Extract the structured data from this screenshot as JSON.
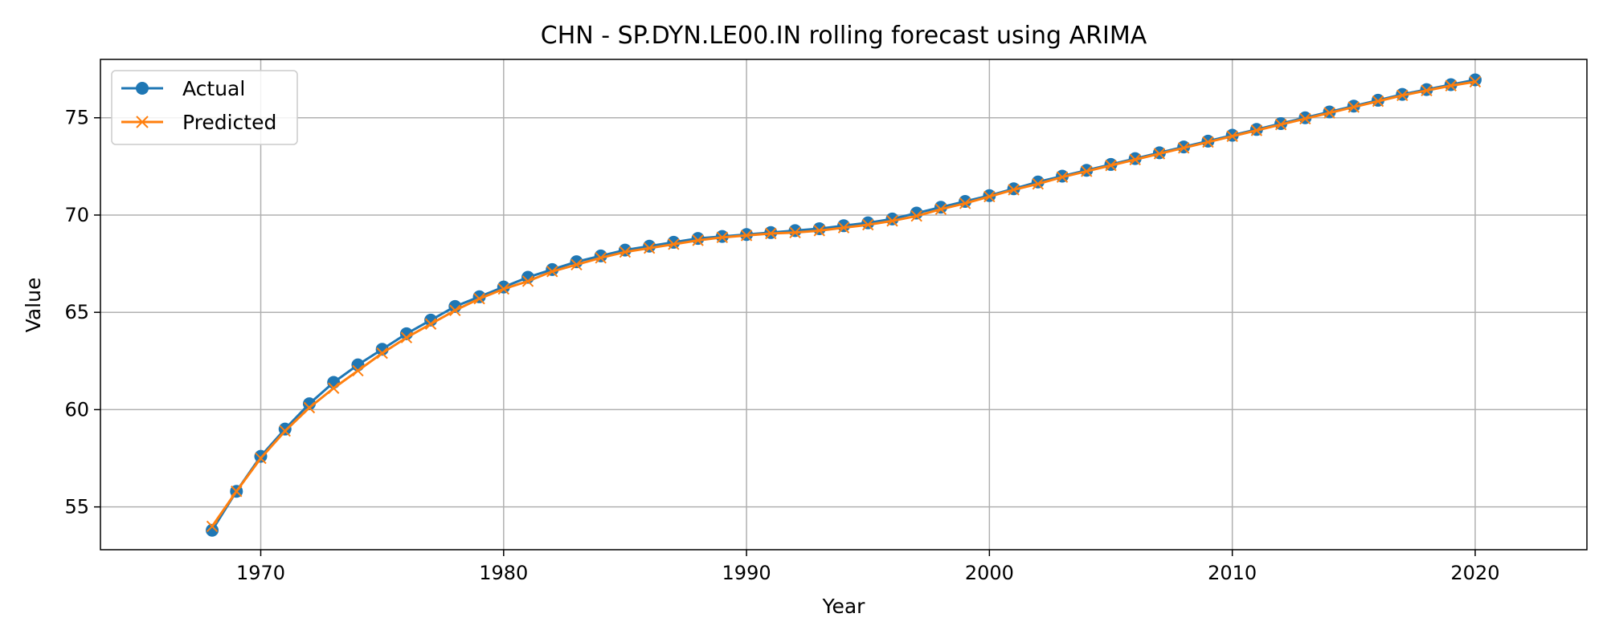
{
  "chart_data": {
    "type": "line",
    "title": "CHN - SP.DYN.LE00.IN rolling forecast using ARIMA",
    "xlabel": "Year",
    "ylabel": "Value",
    "xlim": [
      1963.4,
      2024.6
    ],
    "ylim": [
      52.8,
      78.0
    ],
    "x_ticks": [
      1970,
      1980,
      1990,
      2000,
      2010,
      2020
    ],
    "y_ticks": [
      55,
      60,
      65,
      70,
      75
    ],
    "grid": true,
    "legend_position": "top-left",
    "x": [
      1968,
      1969,
      1970,
      1971,
      1972,
      1973,
      1974,
      1975,
      1976,
      1977,
      1978,
      1979,
      1980,
      1981,
      1982,
      1983,
      1984,
      1985,
      1986,
      1987,
      1988,
      1989,
      1990,
      1991,
      1992,
      1993,
      1994,
      1995,
      1996,
      1997,
      1998,
      1999,
      2000,
      2001,
      2002,
      2003,
      2004,
      2005,
      2006,
      2007,
      2008,
      2009,
      2010,
      2011,
      2012,
      2013,
      2014,
      2015,
      2016,
      2017,
      2018,
      2019,
      2020
    ],
    "series": [
      {
        "name": "Actual",
        "color": "#1f77b4",
        "marker": "circle",
        "values": [
          53.8,
          55.8,
          57.6,
          59.0,
          60.3,
          61.4,
          62.3,
          63.1,
          63.9,
          64.6,
          65.3,
          65.8,
          66.3,
          66.8,
          67.2,
          67.6,
          67.9,
          68.2,
          68.4,
          68.6,
          68.8,
          68.9,
          69.0,
          69.1,
          69.2,
          69.3,
          69.45,
          69.6,
          69.8,
          70.1,
          70.4,
          70.7,
          71.0,
          71.35,
          71.7,
          72.0,
          72.3,
          72.6,
          72.9,
          73.2,
          73.5,
          73.8,
          74.1,
          74.4,
          74.7,
          75.0,
          75.3,
          75.6,
          75.9,
          76.2,
          76.45,
          76.7,
          76.95
        ]
      },
      {
        "name": "Predicted",
        "color": "#ff7f0e",
        "marker": "x",
        "values": [
          54.0,
          55.8,
          57.5,
          58.9,
          60.1,
          61.1,
          62.0,
          62.9,
          63.7,
          64.4,
          65.1,
          65.7,
          66.2,
          66.6,
          67.1,
          67.45,
          67.8,
          68.1,
          68.3,
          68.5,
          68.7,
          68.85,
          68.95,
          69.05,
          69.1,
          69.2,
          69.35,
          69.5,
          69.7,
          69.95,
          70.3,
          70.6,
          70.95,
          71.3,
          71.6,
          71.95,
          72.25,
          72.55,
          72.85,
          73.15,
          73.45,
          73.75,
          74.05,
          74.35,
          74.65,
          74.95,
          75.25,
          75.55,
          75.85,
          76.15,
          76.4,
          76.65,
          76.85
        ]
      }
    ]
  }
}
